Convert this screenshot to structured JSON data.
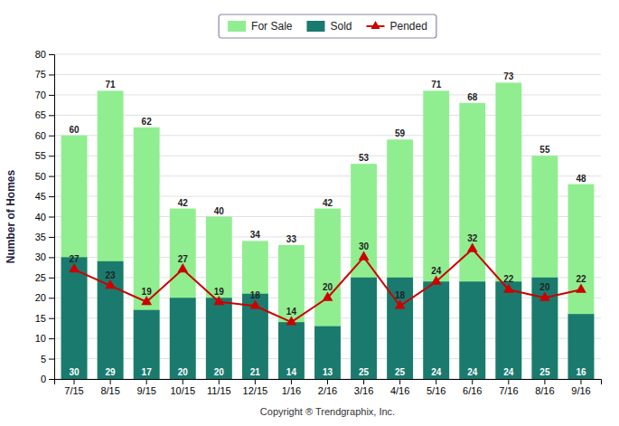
{
  "chart_data": {
    "type": "bar",
    "categories": [
      "7/15",
      "8/15",
      "9/15",
      "10/15",
      "11/15",
      "12/15",
      "1/16",
      "2/16",
      "3/16",
      "4/16",
      "5/16",
      "6/16",
      "7/16",
      "8/16",
      "9/16"
    ],
    "series": [
      {
        "name": "For Sale",
        "type": "bar",
        "color": "#90EE90",
        "values": [
          60,
          71,
          62,
          42,
          40,
          34,
          33,
          42,
          53,
          59,
          71,
          68,
          73,
          55,
          48
        ]
      },
      {
        "name": "Sold",
        "type": "bar",
        "color": "#1a7a6e",
        "values": [
          30,
          29,
          17,
          20,
          20,
          21,
          14,
          13,
          25,
          25,
          24,
          24,
          24,
          25,
          16
        ]
      },
      {
        "name": "Pended",
        "type": "line",
        "color": "#cc0000",
        "marker": "triangle",
        "values": [
          27,
          23,
          19,
          27,
          19,
          18,
          14,
          20,
          30,
          18,
          24,
          32,
          22,
          20,
          22
        ]
      }
    ],
    "ylabel": "Number of Homes",
    "xlabel": "Copyright ® Trendgraphix, Inc.",
    "ylim": [
      0,
      80
    ],
    "yticks": [
      0,
      5,
      10,
      15,
      20,
      25,
      30,
      35,
      40,
      45,
      50,
      55,
      60,
      65,
      70,
      75,
      80
    ],
    "grid": true,
    "data_labels": true,
    "legend": "top"
  }
}
